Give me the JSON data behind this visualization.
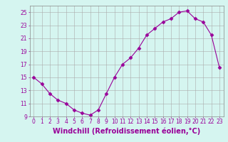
{
  "x": [
    0,
    1,
    2,
    3,
    4,
    5,
    6,
    7,
    8,
    9,
    10,
    11,
    12,
    13,
    14,
    15,
    16,
    17,
    18,
    19,
    20,
    21,
    22,
    23
  ],
  "y": [
    15.0,
    14.0,
    12.5,
    11.5,
    11.0,
    10.0,
    9.5,
    9.2,
    10.0,
    12.5,
    15.0,
    17.0,
    18.0,
    19.5,
    21.5,
    22.5,
    23.5,
    24.0,
    25.0,
    25.2,
    24.0,
    23.5,
    21.5,
    16.5
  ],
  "line_color": "#990099",
  "marker": "D",
  "marker_size": 2.5,
  "bg_color": "#d5f5f0",
  "grid_color": "#aaaaaa",
  "xlabel": "Windchill (Refroidissement éolien,°C)",
  "xlabel_color": "#990099",
  "ylim": [
    9,
    26
  ],
  "yticks": [
    9,
    11,
    13,
    15,
    17,
    19,
    21,
    23,
    25
  ],
  "xlim": [
    -0.5,
    23.5
  ],
  "xticks": [
    0,
    1,
    2,
    3,
    4,
    5,
    6,
    7,
    8,
    9,
    10,
    11,
    12,
    13,
    14,
    15,
    16,
    17,
    18,
    19,
    20,
    21,
    22,
    23
  ],
  "tick_color": "#990099",
  "tick_fontsize": 5.5,
  "xlabel_fontsize": 7.0
}
